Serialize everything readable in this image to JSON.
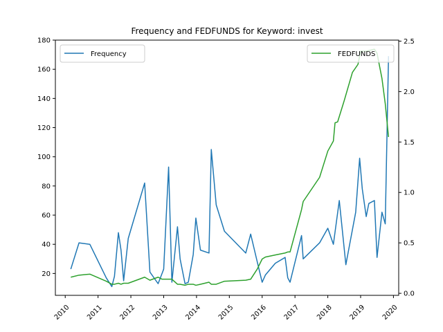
{
  "chart_data": {
    "type": "line",
    "title": "Frequency and FEDFUNDS for Keyword: invest",
    "x_ticks": [
      "2010",
      "2011",
      "2012",
      "2013",
      "2014",
      "2015",
      "2016",
      "2017",
      "2018",
      "2019",
      "2020"
    ],
    "y_left": {
      "ylim": [
        5,
        180
      ],
      "ticks": [
        "20",
        "40",
        "60",
        "80",
        "100",
        "120",
        "140",
        "160",
        "180"
      ]
    },
    "y_right": {
      "ylim": [
        -0.02,
        2.51
      ],
      "ticks": [
        "0.0",
        "0.5",
        "1.0",
        "1.5",
        "2.0",
        "2.5"
      ]
    },
    "legend_left": "top-left",
    "legend_right": "top-right",
    "series": [
      {
        "name": "Frequency",
        "axis": "left",
        "color": "#1f77b4",
        "points": [
          [
            2010.17,
            23
          ],
          [
            2010.42,
            41
          ],
          [
            2010.75,
            40
          ],
          [
            2011.25,
            17
          ],
          [
            2011.42,
            11
          ],
          [
            2011.5,
            18
          ],
          [
            2011.62,
            48
          ],
          [
            2011.7,
            36
          ],
          [
            2011.78,
            15
          ],
          [
            2011.92,
            44
          ],
          [
            2012.42,
            82
          ],
          [
            2012.58,
            21
          ],
          [
            2012.83,
            13
          ],
          [
            2012.95,
            20
          ],
          [
            2013.0,
            23
          ],
          [
            2013.15,
            93
          ],
          [
            2013.25,
            14
          ],
          [
            2013.42,
            52
          ],
          [
            2013.5,
            30
          ],
          [
            2013.65,
            13
          ],
          [
            2013.75,
            14
          ],
          [
            2013.9,
            33
          ],
          [
            2013.98,
            58
          ],
          [
            2014.12,
            36
          ],
          [
            2014.38,
            34
          ],
          [
            2014.45,
            105
          ],
          [
            2014.6,
            67
          ],
          [
            2014.85,
            49
          ],
          [
            2015.5,
            34
          ],
          [
            2015.65,
            47
          ],
          [
            2015.85,
            28
          ],
          [
            2016.0,
            14
          ],
          [
            2016.1,
            19
          ],
          [
            2016.4,
            27
          ],
          [
            2016.7,
            31
          ],
          [
            2016.78,
            17
          ],
          [
            2016.85,
            14
          ],
          [
            2017.2,
            46
          ],
          [
            2017.25,
            30
          ],
          [
            2017.75,
            41
          ],
          [
            2018.0,
            51
          ],
          [
            2018.17,
            40
          ],
          [
            2018.35,
            70
          ],
          [
            2018.55,
            26
          ],
          [
            2018.85,
            62
          ],
          [
            2018.97,
            99
          ],
          [
            2019.05,
            78
          ],
          [
            2019.17,
            59
          ],
          [
            2019.25,
            68
          ],
          [
            2019.42,
            70
          ],
          [
            2019.5,
            31
          ],
          [
            2019.65,
            62
          ],
          [
            2019.75,
            54
          ],
          [
            2019.85,
            169
          ]
        ]
      },
      {
        "name": "FEDFUNDS",
        "axis": "right",
        "color": "#2ca02c",
        "points": [
          [
            2010.17,
            0.16
          ],
          [
            2010.42,
            0.18
          ],
          [
            2010.75,
            0.19
          ],
          [
            2011.25,
            0.12
          ],
          [
            2011.42,
            0.09
          ],
          [
            2011.5,
            0.09
          ],
          [
            2011.62,
            0.1
          ],
          [
            2011.7,
            0.09
          ],
          [
            2011.78,
            0.1
          ],
          [
            2011.92,
            0.1
          ],
          [
            2012.42,
            0.16
          ],
          [
            2012.58,
            0.13
          ],
          [
            2012.83,
            0.16
          ],
          [
            2012.95,
            0.14
          ],
          [
            2013.0,
            0.14
          ],
          [
            2013.15,
            0.14
          ],
          [
            2013.25,
            0.14
          ],
          [
            2013.42,
            0.09
          ],
          [
            2013.5,
            0.09
          ],
          [
            2013.65,
            0.08
          ],
          [
            2013.75,
            0.09
          ],
          [
            2013.9,
            0.09
          ],
          [
            2013.98,
            0.08
          ],
          [
            2014.12,
            0.09
          ],
          [
            2014.38,
            0.11
          ],
          [
            2014.45,
            0.09
          ],
          [
            2014.6,
            0.09
          ],
          [
            2014.85,
            0.12
          ],
          [
            2015.5,
            0.13
          ],
          [
            2015.65,
            0.14
          ],
          [
            2015.85,
            0.24
          ],
          [
            2016.0,
            0.34
          ],
          [
            2016.1,
            0.36
          ],
          [
            2016.4,
            0.38
          ],
          [
            2016.7,
            0.4
          ],
          [
            2016.78,
            0.41
          ],
          [
            2016.85,
            0.41
          ],
          [
            2017.2,
            0.83
          ],
          [
            2017.25,
            0.91
          ],
          [
            2017.75,
            1.15
          ],
          [
            2018.0,
            1.41
          ],
          [
            2018.17,
            1.51
          ],
          [
            2018.22,
            1.69
          ],
          [
            2018.3,
            1.7
          ],
          [
            2018.5,
            1.91
          ],
          [
            2018.75,
            2.19
          ],
          [
            2018.92,
            2.27
          ],
          [
            2019.0,
            2.4
          ],
          [
            2019.17,
            2.4
          ],
          [
            2019.42,
            2.42
          ],
          [
            2019.5,
            2.38
          ],
          [
            2019.65,
            2.13
          ],
          [
            2019.75,
            1.88
          ],
          [
            2019.85,
            1.55
          ]
        ]
      }
    ]
  }
}
